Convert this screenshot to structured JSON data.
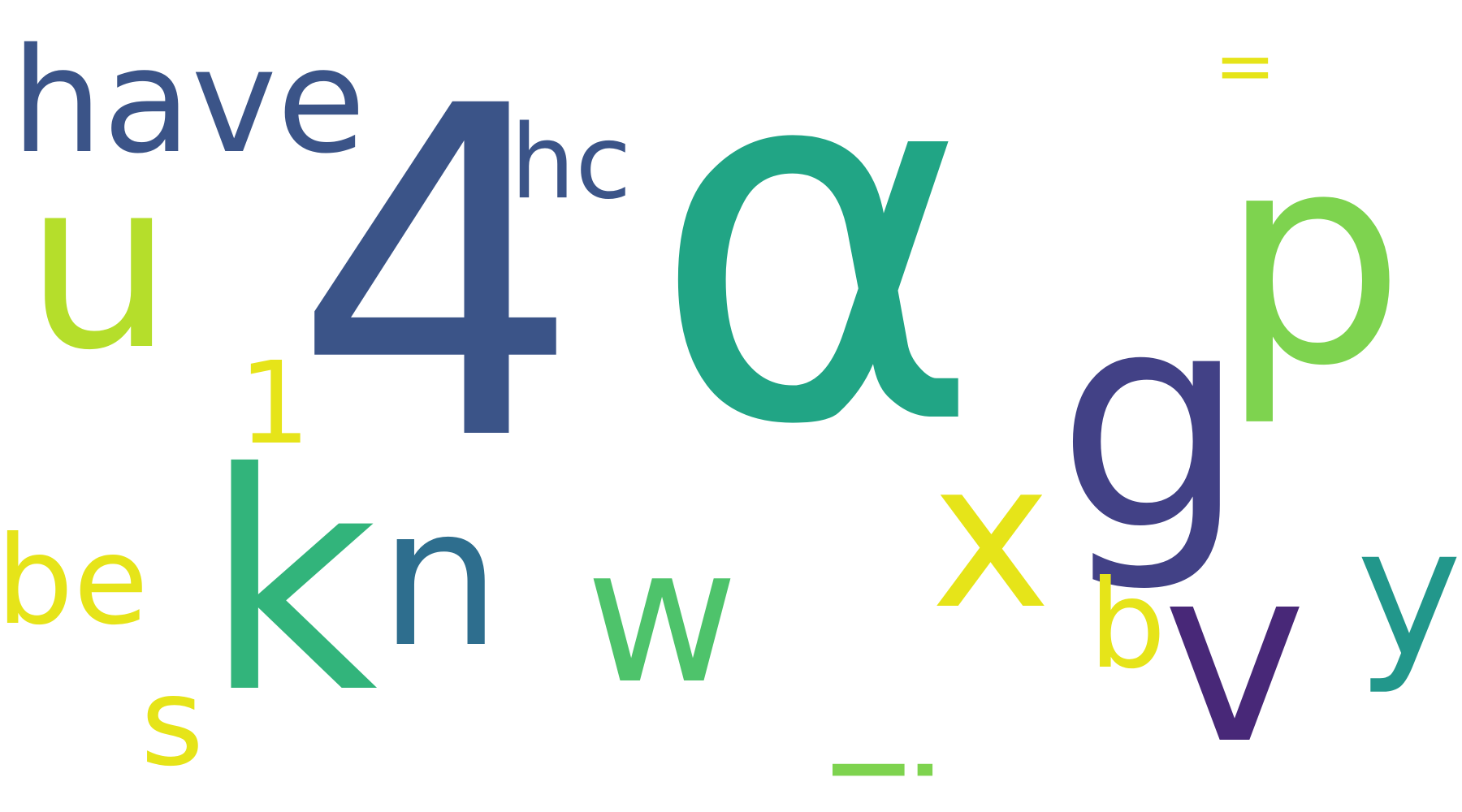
{
  "words": [
    {
      "id": "alpha",
      "text": "α",
      "color": "#21a585"
    },
    {
      "id": "four",
      "text": "4",
      "color": "#3b5488"
    },
    {
      "id": "have",
      "text": "have",
      "color": "#3b5488"
    },
    {
      "id": "hc",
      "text": "hc",
      "color": "#3b5488"
    },
    {
      "id": "u",
      "text": "u",
      "color": "#b5de2b"
    },
    {
      "id": "p",
      "text": "p",
      "color": "#7ed34f"
    },
    {
      "id": "g",
      "text": "g",
      "color": "#424186"
    },
    {
      "id": "x",
      "text": "x",
      "color": "#e6e419"
    },
    {
      "id": "equals",
      "text": "=",
      "color": "#e6e419"
    },
    {
      "id": "one",
      "text": "1",
      "color": "#e6e419"
    },
    {
      "id": "be",
      "text": "be",
      "color": "#e6e419"
    },
    {
      "id": "k",
      "text": "k",
      "color": "#32b47b"
    },
    {
      "id": "n",
      "text": "n",
      "color": "#2e6e8e"
    },
    {
      "id": "w",
      "text": "w",
      "color": "#4ec36b"
    },
    {
      "id": "b",
      "text": "b",
      "color": "#e6e419"
    },
    {
      "id": "v",
      "text": "v",
      "color": "#482878"
    },
    {
      "id": "y",
      "text": "y",
      "color": "#22978b"
    },
    {
      "id": "s",
      "text": "s",
      "color": "#e6e419"
    },
    {
      "id": "i",
      "text": "i",
      "color": "#7ed34f"
    }
  ]
}
